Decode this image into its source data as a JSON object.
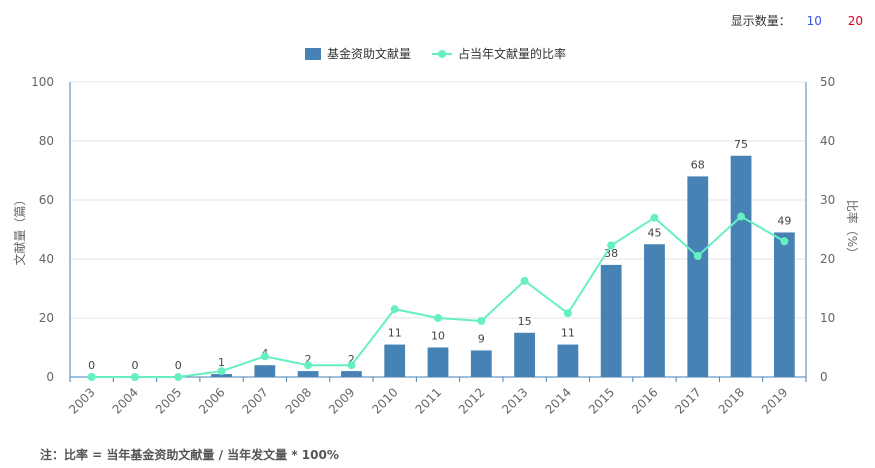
{
  "controls": {
    "label": "显示数量：",
    "options": [
      "10",
      "20"
    ],
    "colors": {
      "10": "#2f54eb",
      "20": "#d9001b"
    }
  },
  "note": "注：比率 = 当年基金资助文献量 / 当年发文量 * 100%",
  "chart_data": {
    "type": "bar",
    "categories": [
      "2003",
      "2004",
      "2005",
      "2006",
      "2007",
      "2008",
      "2009",
      "2010",
      "2011",
      "2012",
      "2013",
      "2014",
      "2015",
      "2016",
      "2017",
      "2018",
      "2019"
    ],
    "series": [
      {
        "name": "基金资助文献量",
        "type": "bar",
        "axis": "left",
        "color": "#4682b4",
        "values": [
          0,
          0,
          0,
          1,
          4,
          2,
          2,
          11,
          10,
          9,
          15,
          11,
          38,
          45,
          68,
          75,
          49
        ]
      },
      {
        "name": "占当年文献量的比率",
        "type": "line",
        "axis": "right",
        "color": "#66f0c2",
        "values": [
          0,
          0,
          0,
          1,
          3.5,
          2,
          2,
          11.5,
          10,
          9.5,
          16.3,
          10.8,
          22.3,
          27,
          20.5,
          27.2,
          23
        ]
      }
    ],
    "ylabel_left": "文献量（篇）",
    "ylabel_right": "比率（%）",
    "ylim_left": [
      0,
      100
    ],
    "ylim_right": [
      0,
      50
    ],
    "yticks_left": [
      "0",
      "20",
      "40",
      "60",
      "80",
      "100"
    ],
    "yticks_right": [
      "0",
      "10",
      "20",
      "30",
      "40",
      "50"
    ],
    "grid": true,
    "legend_position": "top-center"
  }
}
